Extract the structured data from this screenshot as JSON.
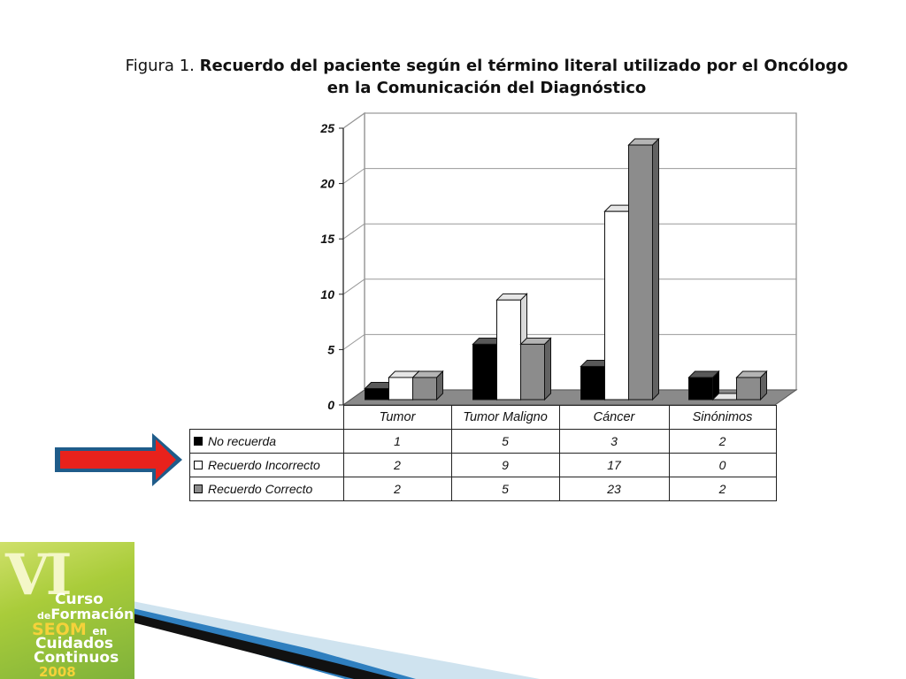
{
  "title": {
    "prefix": "Figura 1.",
    "line1": "Recuerdo del paciente según el término literal utilizado por el Oncólogo",
    "line2": "en la Comunicación del Diagnóstico"
  },
  "chart_data": {
    "type": "bar",
    "title": "Figura 1. Recuerdo del paciente según el término literal utilizado por el Oncólogo en la Comunicación del Diagnóstico",
    "categories": [
      "Tumor",
      "Tumor Maligno",
      "Cáncer",
      "Sinónimos"
    ],
    "series": [
      {
        "name": "No recuerda",
        "values": [
          1,
          5,
          3,
          2
        ],
        "color": "#000000"
      },
      {
        "name": "Recuerdo Incorrecto",
        "values": [
          2,
          9,
          17,
          0
        ],
        "color": "#ffffff"
      },
      {
        "name": "Recuerdo Correcto",
        "values": [
          2,
          5,
          23,
          2
        ],
        "color": "#8c8c8c"
      }
    ],
    "ylim": [
      0,
      25
    ],
    "yticks": [
      "0",
      "5",
      "10",
      "15",
      "20",
      "25"
    ],
    "grid": true,
    "style": "3d-clustered",
    "legend": "data-table below chart",
    "xlabel": "",
    "ylabel": ""
  },
  "colors": {
    "wall": "#ffffff",
    "floor": "#8a8a8a",
    "gridline": "#999999",
    "arrow_fill": "#e8221c",
    "arrow_outline": "#1f5c8a"
  },
  "logo": {
    "mark": "VI",
    "line1": "Curso",
    "line2_prefix": "de",
    "line2": "Formación",
    "line3": "SEOM",
    "line3_suffix": "en",
    "line4": "Cuidados",
    "line5": "Continuos",
    "year": "2008"
  },
  "icons": {
    "arrow": "right-arrow-icon"
  }
}
